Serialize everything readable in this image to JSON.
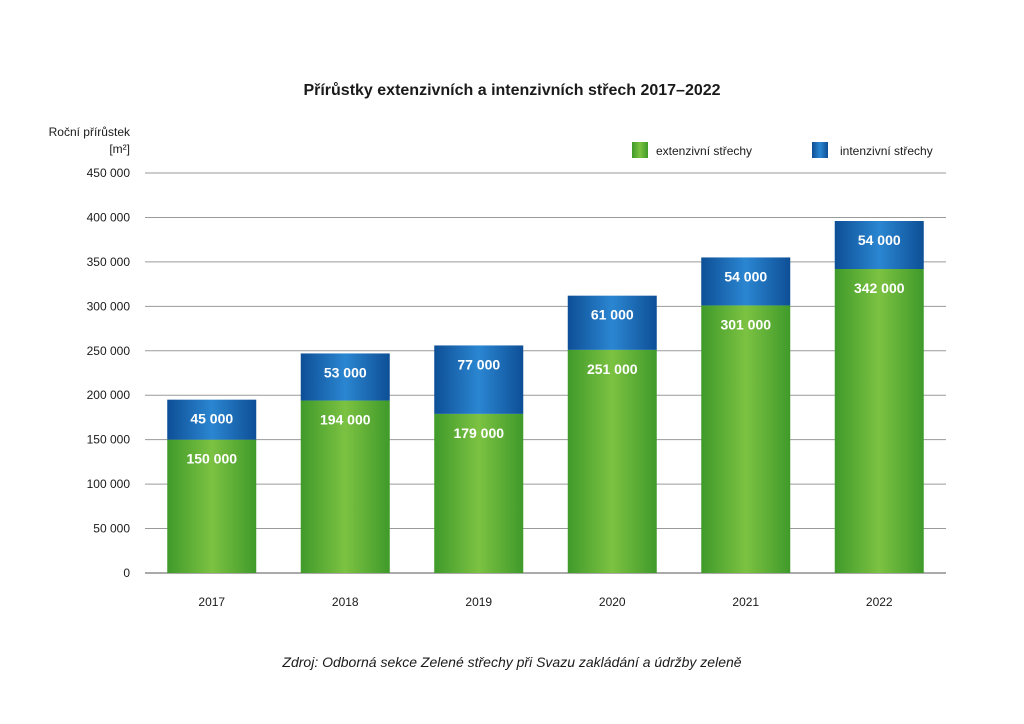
{
  "chart_data": {
    "type": "bar",
    "stacked": true,
    "title": "Přírůstky extenzivních a intenzivních střech 2017–2022",
    "ylabel_line1": "Roční přírůstek",
    "ylabel_line2": "[m²]",
    "categories": [
      "2017",
      "2018",
      "2019",
      "2020",
      "2021",
      "2022"
    ],
    "series": [
      {
        "name": "extenzivní střechy",
        "color": "#4fae2e",
        "values": [
          150000,
          194000,
          179000,
          251000,
          301000,
          342000
        ]
      },
      {
        "name": "intenzivní střechy",
        "color": "#1565b0",
        "values": [
          45000,
          53000,
          77000,
          61000,
          54000,
          54000
        ]
      }
    ],
    "data_labels": {
      "extenzivní střechy": [
        "150 000",
        "194 000",
        "179 000",
        "251 000",
        "301 000",
        "342 000"
      ],
      "intenzivní střechy": [
        "45 000",
        "53 000",
        "77 000",
        "61 000",
        "54 000",
        "54 000"
      ]
    },
    "yticks": [
      0,
      50000,
      100000,
      150000,
      200000,
      250000,
      300000,
      350000,
      400000,
      450000
    ],
    "ytick_labels": [
      "0",
      "50 000",
      "100 000",
      "150 000",
      "200 000",
      "250 000",
      "300 000",
      "350 000",
      "400 000",
      "450 000"
    ],
    "ylim": [
      0,
      450000
    ],
    "grid": true,
    "legend_position": "top-right"
  },
  "source": "Zdroj: Odborná sekce Zelené střechy při Svazu zakládání a údržby zeleně"
}
